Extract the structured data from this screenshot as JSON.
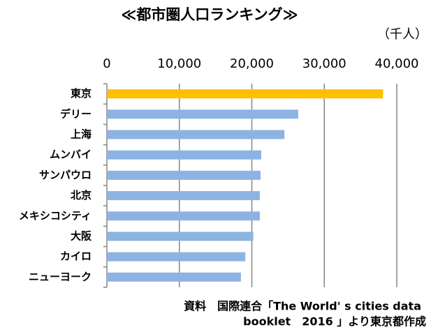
{
  "chart_data": {
    "type": "bar",
    "orientation": "horizontal",
    "title": "≪都市圏人口ランキング≫",
    "unit": "（千人）",
    "source": [
      "資料　国際連合「The World' s cities data",
      "booklet　2016 」より東京都作成"
    ],
    "categories": [
      "東京",
      "デリー",
      "上海",
      "ムンバイ",
      "サンパウロ",
      "北京",
      "メキシコシティ",
      "大阪",
      "カイロ",
      "ニューヨーク"
    ],
    "values": [
      38100,
      26400,
      24500,
      21300,
      21200,
      21100,
      21100,
      20200,
      19100,
      18500
    ],
    "colors": [
      "#ffc000",
      "#8db3e2",
      "#8db3e2",
      "#8db3e2",
      "#8db3e2",
      "#8db3e2",
      "#8db3e2",
      "#8db3e2",
      "#8db3e2",
      "#8db3e2"
    ],
    "xlim": [
      0,
      40000
    ],
    "xticks": [
      0,
      {
        "value": 10000,
        "label": "10,000"
      },
      {
        "value": 20000,
        "label": "20,000"
      },
      {
        "value": 30000,
        "label": "30,000"
      },
      {
        "value": 40000,
        "label": "40,000"
      }
    ],
    "grid": true
  }
}
